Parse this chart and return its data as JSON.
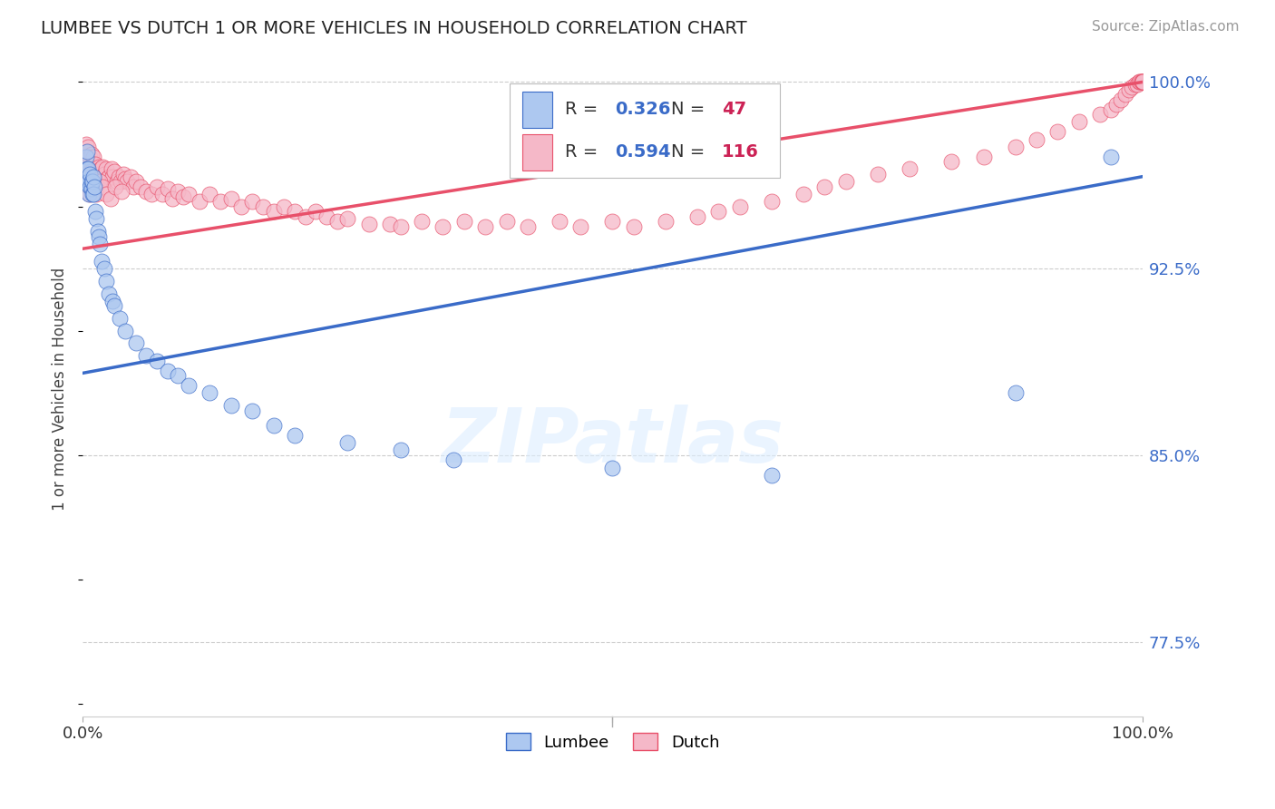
{
  "title": "LUMBEE VS DUTCH 1 OR MORE VEHICLES IN HOUSEHOLD CORRELATION CHART",
  "source": "Source: ZipAtlas.com",
  "ylabel": "1 or more Vehicles in Household",
  "lumbee_R": 0.326,
  "lumbee_N": 47,
  "dutch_R": 0.594,
  "dutch_N": 116,
  "lumbee_color": "#adc8f0",
  "dutch_color": "#f5b8c8",
  "lumbee_line_color": "#3a6bc8",
  "dutch_line_color": "#e8506a",
  "R_color": "#3a6bc8",
  "N_color": "#cc2255",
  "xlim": [
    0.0,
    1.0
  ],
  "ylim": [
    0.745,
    1.008
  ],
  "yticks_right": [
    0.775,
    0.85,
    0.925,
    1.0
  ],
  "grid_color": "#cccccc",
  "background_color": "#ffffff",
  "lumbee_x": [
    0.003,
    0.004,
    0.004,
    0.005,
    0.005,
    0.006,
    0.006,
    0.007,
    0.007,
    0.008,
    0.008,
    0.009,
    0.009,
    0.01,
    0.01,
    0.011,
    0.012,
    0.013,
    0.014,
    0.015,
    0.016,
    0.018,
    0.02,
    0.022,
    0.025,
    0.028,
    0.03,
    0.035,
    0.04,
    0.05,
    0.06,
    0.07,
    0.08,
    0.09,
    0.1,
    0.12,
    0.14,
    0.16,
    0.18,
    0.2,
    0.25,
    0.3,
    0.35,
    0.5,
    0.65,
    0.88,
    0.97
  ],
  "lumbee_y": [
    0.97,
    0.965,
    0.972,
    0.96,
    0.965,
    0.955,
    0.96,
    0.958,
    0.963,
    0.957,
    0.96,
    0.955,
    0.96,
    0.955,
    0.962,
    0.958,
    0.948,
    0.945,
    0.94,
    0.938,
    0.935,
    0.928,
    0.925,
    0.92,
    0.915,
    0.912,
    0.91,
    0.905,
    0.9,
    0.895,
    0.89,
    0.888,
    0.884,
    0.882,
    0.878,
    0.875,
    0.87,
    0.868,
    0.862,
    0.858,
    0.855,
    0.852,
    0.848,
    0.845,
    0.842,
    0.875,
    0.97
  ],
  "dutch_x": [
    0.003,
    0.004,
    0.005,
    0.005,
    0.006,
    0.007,
    0.008,
    0.008,
    0.009,
    0.01,
    0.01,
    0.011,
    0.012,
    0.013,
    0.014,
    0.015,
    0.016,
    0.017,
    0.018,
    0.019,
    0.02,
    0.022,
    0.023,
    0.025,
    0.027,
    0.028,
    0.03,
    0.032,
    0.034,
    0.036,
    0.038,
    0.04,
    0.042,
    0.045,
    0.048,
    0.05,
    0.055,
    0.06,
    0.065,
    0.07,
    0.075,
    0.08,
    0.085,
    0.09,
    0.095,
    0.1,
    0.11,
    0.12,
    0.13,
    0.14,
    0.15,
    0.16,
    0.17,
    0.18,
    0.19,
    0.2,
    0.21,
    0.22,
    0.23,
    0.24,
    0.25,
    0.27,
    0.29,
    0.3,
    0.32,
    0.34,
    0.36,
    0.38,
    0.4,
    0.42,
    0.45,
    0.47,
    0.5,
    0.52,
    0.55,
    0.58,
    0.6,
    0.62,
    0.65,
    0.68,
    0.7,
    0.72,
    0.75,
    0.78,
    0.82,
    0.85,
    0.88,
    0.9,
    0.92,
    0.94,
    0.96,
    0.97,
    0.975,
    0.98,
    0.984,
    0.987,
    0.99,
    0.993,
    0.995,
    0.997,
    0.998,
    0.999,
    0.9995,
    1.0,
    1.0,
    1.0,
    0.007,
    0.009,
    0.011,
    0.013,
    0.016,
    0.019,
    0.022,
    0.026,
    0.031,
    0.037
  ],
  "dutch_y": [
    0.975,
    0.972,
    0.968,
    0.974,
    0.966,
    0.97,
    0.965,
    0.971,
    0.967,
    0.965,
    0.97,
    0.963,
    0.967,
    0.964,
    0.962,
    0.966,
    0.963,
    0.965,
    0.962,
    0.966,
    0.963,
    0.965,
    0.961,
    0.962,
    0.965,
    0.962,
    0.964,
    0.96,
    0.962,
    0.96,
    0.963,
    0.961,
    0.96,
    0.962,
    0.958,
    0.96,
    0.958,
    0.956,
    0.955,
    0.958,
    0.955,
    0.957,
    0.953,
    0.956,
    0.954,
    0.955,
    0.952,
    0.955,
    0.952,
    0.953,
    0.95,
    0.952,
    0.95,
    0.948,
    0.95,
    0.948,
    0.946,
    0.948,
    0.946,
    0.944,
    0.945,
    0.943,
    0.943,
    0.942,
    0.944,
    0.942,
    0.944,
    0.942,
    0.944,
    0.942,
    0.944,
    0.942,
    0.944,
    0.942,
    0.944,
    0.946,
    0.948,
    0.95,
    0.952,
    0.955,
    0.958,
    0.96,
    0.963,
    0.965,
    0.968,
    0.97,
    0.974,
    0.977,
    0.98,
    0.984,
    0.987,
    0.989,
    0.991,
    0.993,
    0.995,
    0.997,
    0.998,
    0.999,
    0.999,
    1.0,
    1.0,
    1.0,
    1.0,
    1.0,
    1.0,
    1.0,
    0.955,
    0.96,
    0.958,
    0.955,
    0.96,
    0.958,
    0.955,
    0.953,
    0.958,
    0.956
  ],
  "lumbee_trend": [
    0.883,
    0.962
  ],
  "dutch_trend": [
    0.933,
    1.0
  ],
  "watermark_text": "ZIPatlas",
  "watermark_color": "#ddeeff"
}
